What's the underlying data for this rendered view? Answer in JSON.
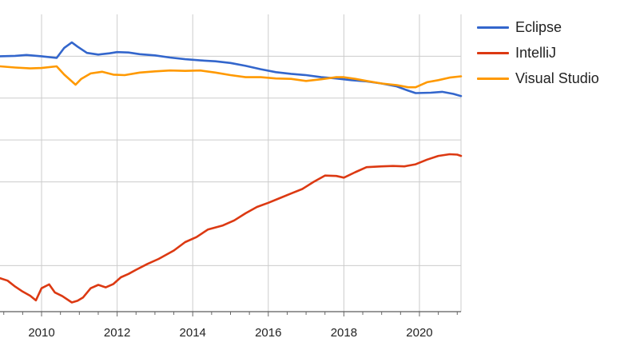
{
  "chart_data": {
    "type": "line",
    "title": "",
    "xlabel": "",
    "ylabel": "",
    "xlim": [
      2008.9,
      2021.1
    ],
    "ylim": [
      -1,
      70
    ],
    "x_ticks": [
      2010,
      2012,
      2014,
      2016,
      2018,
      2020
    ],
    "x_tick_labels": [
      "2010",
      "2012",
      "2014",
      "2016",
      "2018",
      "2020"
    ],
    "y_gridlines": [
      10,
      30,
      40,
      50,
      60
    ],
    "grid": true,
    "legend_position": "right",
    "series": [
      {
        "name": "Eclipse",
        "color": "#3366cc",
        "points": [
          [
            2008.9,
            60.0
          ],
          [
            2009.3,
            60.1
          ],
          [
            2009.6,
            60.3
          ],
          [
            2010.0,
            60.0
          ],
          [
            2010.4,
            59.6
          ],
          [
            2010.6,
            62.0
          ],
          [
            2010.8,
            63.3
          ],
          [
            2010.95,
            62.3
          ],
          [
            2011.2,
            60.8
          ],
          [
            2011.5,
            60.4
          ],
          [
            2011.8,
            60.7
          ],
          [
            2012.0,
            61.0
          ],
          [
            2012.3,
            60.9
          ],
          [
            2012.6,
            60.5
          ],
          [
            2013.0,
            60.2
          ],
          [
            2013.4,
            59.7
          ],
          [
            2013.8,
            59.3
          ],
          [
            2014.2,
            59.0
          ],
          [
            2014.6,
            58.8
          ],
          [
            2015.0,
            58.4
          ],
          [
            2015.4,
            57.7
          ],
          [
            2015.8,
            56.9
          ],
          [
            2016.2,
            56.2
          ],
          [
            2016.6,
            55.8
          ],
          [
            2017.0,
            55.5
          ],
          [
            2017.4,
            55.0
          ],
          [
            2017.8,
            54.7
          ],
          [
            2018.2,
            54.3
          ],
          [
            2018.6,
            54.0
          ],
          [
            2019.0,
            53.5
          ],
          [
            2019.4,
            52.8
          ],
          [
            2019.7,
            51.8
          ],
          [
            2019.9,
            51.2
          ],
          [
            2020.3,
            51.3
          ],
          [
            2020.6,
            51.5
          ],
          [
            2020.9,
            51.0
          ],
          [
            2021.1,
            50.5
          ]
        ]
      },
      {
        "name": "IntelliJ",
        "color": "#dc3912",
        "points": [
          [
            2008.9,
            7.0
          ],
          [
            2009.1,
            6.4
          ],
          [
            2009.3,
            5.0
          ],
          [
            2009.5,
            3.8
          ],
          [
            2009.7,
            2.8
          ],
          [
            2009.85,
            1.7
          ],
          [
            2010.0,
            4.6
          ],
          [
            2010.2,
            5.5
          ],
          [
            2010.35,
            3.6
          ],
          [
            2010.55,
            2.7
          ],
          [
            2010.8,
            1.2
          ],
          [
            2010.95,
            1.6
          ],
          [
            2011.1,
            2.4
          ],
          [
            2011.3,
            4.6
          ],
          [
            2011.5,
            5.4
          ],
          [
            2011.7,
            4.8
          ],
          [
            2011.9,
            5.6
          ],
          [
            2012.1,
            7.2
          ],
          [
            2012.3,
            8.0
          ],
          [
            2012.5,
            9.0
          ],
          [
            2012.8,
            10.4
          ],
          [
            2013.1,
            11.6
          ],
          [
            2013.5,
            13.6
          ],
          [
            2013.8,
            15.6
          ],
          [
            2014.1,
            16.8
          ],
          [
            2014.4,
            18.6
          ],
          [
            2014.8,
            19.6
          ],
          [
            2015.1,
            20.8
          ],
          [
            2015.4,
            22.5
          ],
          [
            2015.7,
            24.0
          ],
          [
            2016.0,
            25.0
          ],
          [
            2016.3,
            26.1
          ],
          [
            2016.6,
            27.2
          ],
          [
            2016.9,
            28.3
          ],
          [
            2017.2,
            30.0
          ],
          [
            2017.5,
            31.5
          ],
          [
            2017.8,
            31.4
          ],
          [
            2018.0,
            31.0
          ],
          [
            2018.3,
            32.3
          ],
          [
            2018.6,
            33.5
          ],
          [
            2019.0,
            33.7
          ],
          [
            2019.3,
            33.8
          ],
          [
            2019.6,
            33.7
          ],
          [
            2019.9,
            34.2
          ],
          [
            2020.2,
            35.3
          ],
          [
            2020.5,
            36.2
          ],
          [
            2020.8,
            36.6
          ],
          [
            2021.0,
            36.5
          ],
          [
            2021.1,
            36.2
          ]
        ]
      },
      {
        "name": "Visual Studio",
        "color": "#ff9900",
        "points": [
          [
            2008.9,
            57.6
          ],
          [
            2009.3,
            57.3
          ],
          [
            2009.7,
            57.1
          ],
          [
            2010.0,
            57.2
          ],
          [
            2010.4,
            57.6
          ],
          [
            2010.6,
            55.6
          ],
          [
            2010.9,
            53.2
          ],
          [
            2011.05,
            54.6
          ],
          [
            2011.3,
            55.9
          ],
          [
            2011.6,
            56.3
          ],
          [
            2011.9,
            55.6
          ],
          [
            2012.2,
            55.5
          ],
          [
            2012.6,
            56.1
          ],
          [
            2013.0,
            56.4
          ],
          [
            2013.4,
            56.6
          ],
          [
            2013.8,
            56.5
          ],
          [
            2014.2,
            56.6
          ],
          [
            2014.6,
            56.1
          ],
          [
            2015.0,
            55.5
          ],
          [
            2015.4,
            55.0
          ],
          [
            2015.8,
            55.0
          ],
          [
            2016.2,
            54.7
          ],
          [
            2016.6,
            54.6
          ],
          [
            2017.0,
            54.1
          ],
          [
            2017.4,
            54.5
          ],
          [
            2017.8,
            55.0
          ],
          [
            2018.0,
            55.0
          ],
          [
            2018.3,
            54.6
          ],
          [
            2018.6,
            54.1
          ],
          [
            2019.0,
            53.5
          ],
          [
            2019.4,
            53.1
          ],
          [
            2019.7,
            52.6
          ],
          [
            2019.9,
            52.6
          ],
          [
            2020.2,
            53.8
          ],
          [
            2020.5,
            54.3
          ],
          [
            2020.8,
            54.9
          ],
          [
            2021.1,
            55.2
          ]
        ]
      }
    ]
  }
}
